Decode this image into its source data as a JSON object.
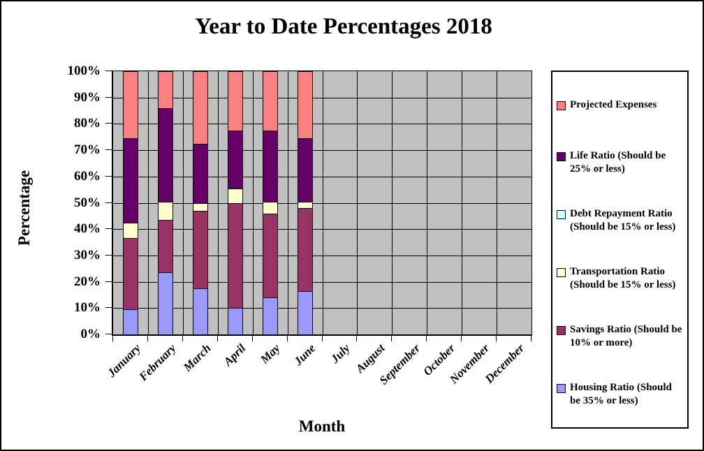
{
  "title": "Year to Date Percentages 2018",
  "x_axis_title": "Month",
  "y_axis_title": "Percentage",
  "y_tick_labels": [
    "100%",
    "90%",
    "80%",
    "70%",
    "60%",
    "50%",
    "40%",
    "30%",
    "20%",
    "10%",
    "0%"
  ],
  "plot_bg_color": "#C0C0C0",
  "chart_data": {
    "type": "bar",
    "stacked": true,
    "title": "Year to Date Percentages 2018",
    "xlabel": "Month",
    "ylabel": "Percentage",
    "ylim": [
      0,
      100
    ],
    "grid": true,
    "legend_position": "right",
    "categories": [
      "January",
      "February",
      "March",
      "April",
      "May",
      "June",
      "July",
      "August",
      "September",
      "October",
      "November",
      "December"
    ],
    "series_order_note": "bottom to top",
    "series": [
      {
        "name": "Housing Ratio (Should be 35% or less)",
        "color": "#9999FF",
        "values": [
          9.5,
          23.5,
          17.5,
          10,
          14,
          16.5,
          0,
          0,
          0,
          0,
          0,
          0
        ]
      },
      {
        "name": "Savings Ratio (Should be 10% or more)",
        "color": "#993366",
        "values": [
          27,
          20,
          29.5,
          40,
          32,
          31.5,
          0,
          0,
          0,
          0,
          0,
          0
        ]
      },
      {
        "name": "Transportation Ratio (Should be 15% or less)",
        "color": "#FFFFCC",
        "values": [
          6,
          7,
          3,
          5.5,
          4.5,
          2.5,
          0,
          0,
          0,
          0,
          0,
          0
        ]
      },
      {
        "name": "Debt Repayment Ratio (Should be 15% or less)",
        "color": "#CCFFFF",
        "values": [
          0,
          0,
          0,
          0,
          0,
          0,
          0,
          0,
          0,
          0,
          0,
          0
        ]
      },
      {
        "name": "Life Ratio (Should be 25% or less)",
        "color": "#660066",
        "values": [
          32,
          35.5,
          22.5,
          22,
          27,
          24,
          0,
          0,
          0,
          0,
          0,
          0
        ]
      },
      {
        "name": "Projected Expenses",
        "color": "#FF8080",
        "values": [
          25.5,
          14,
          27.5,
          22.5,
          22.5,
          25.5,
          0,
          0,
          0,
          0,
          0,
          0
        ]
      }
    ],
    "legend_display_order": [
      5,
      4,
      3,
      2,
      1,
      0
    ]
  }
}
